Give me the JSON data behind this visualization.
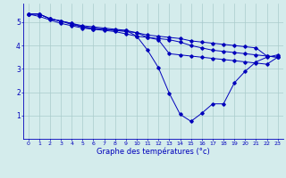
{
  "xlabel": "Graphe des températures (°c)",
  "background_color": "#d4ecec",
  "line_color": "#0000bb",
  "xlim": [
    -0.5,
    23.5
  ],
  "ylim": [
    0,
    5.8
  ],
  "xticks": [
    0,
    1,
    2,
    3,
    4,
    5,
    6,
    7,
    8,
    9,
    10,
    11,
    12,
    13,
    14,
    15,
    16,
    17,
    18,
    19,
    20,
    21,
    22,
    23
  ],
  "yticks": [
    1,
    2,
    3,
    4,
    5
  ],
  "grid_color": "#aacccc",
  "lines": [
    [
      5.35,
      5.35,
      5.15,
      5.05,
      4.95,
      4.85,
      4.8,
      4.75,
      4.7,
      4.65,
      4.55,
      4.45,
      4.4,
      4.35,
      4.3,
      4.2,
      4.15,
      4.1,
      4.05,
      4.0,
      3.95,
      3.9,
      3.55,
      3.5
    ],
    [
      5.35,
      5.35,
      5.15,
      5.05,
      4.95,
      4.8,
      4.7,
      4.65,
      4.6,
      4.5,
      4.4,
      3.8,
      3.05,
      1.95,
      1.05,
      0.75,
      1.1,
      1.5,
      1.5,
      2.4,
      2.9,
      3.3,
      3.5,
      3.6
    ],
    [
      5.35,
      5.25,
      5.1,
      4.95,
      4.85,
      4.75,
      4.7,
      4.7,
      4.65,
      4.65,
      4.4,
      4.35,
      4.25,
      3.65,
      3.6,
      3.55,
      3.5,
      3.45,
      3.4,
      3.35,
      3.3,
      3.25,
      3.2,
      3.5
    ],
    [
      5.35,
      5.35,
      5.15,
      5.05,
      4.9,
      4.8,
      4.75,
      4.7,
      4.65,
      4.6,
      4.55,
      4.35,
      4.3,
      4.25,
      4.15,
      4.0,
      3.9,
      3.8,
      3.75,
      3.7,
      3.65,
      3.6,
      3.55,
      3.5
    ]
  ],
  "figsize": [
    3.2,
    2.0
  ],
  "dpi": 100
}
